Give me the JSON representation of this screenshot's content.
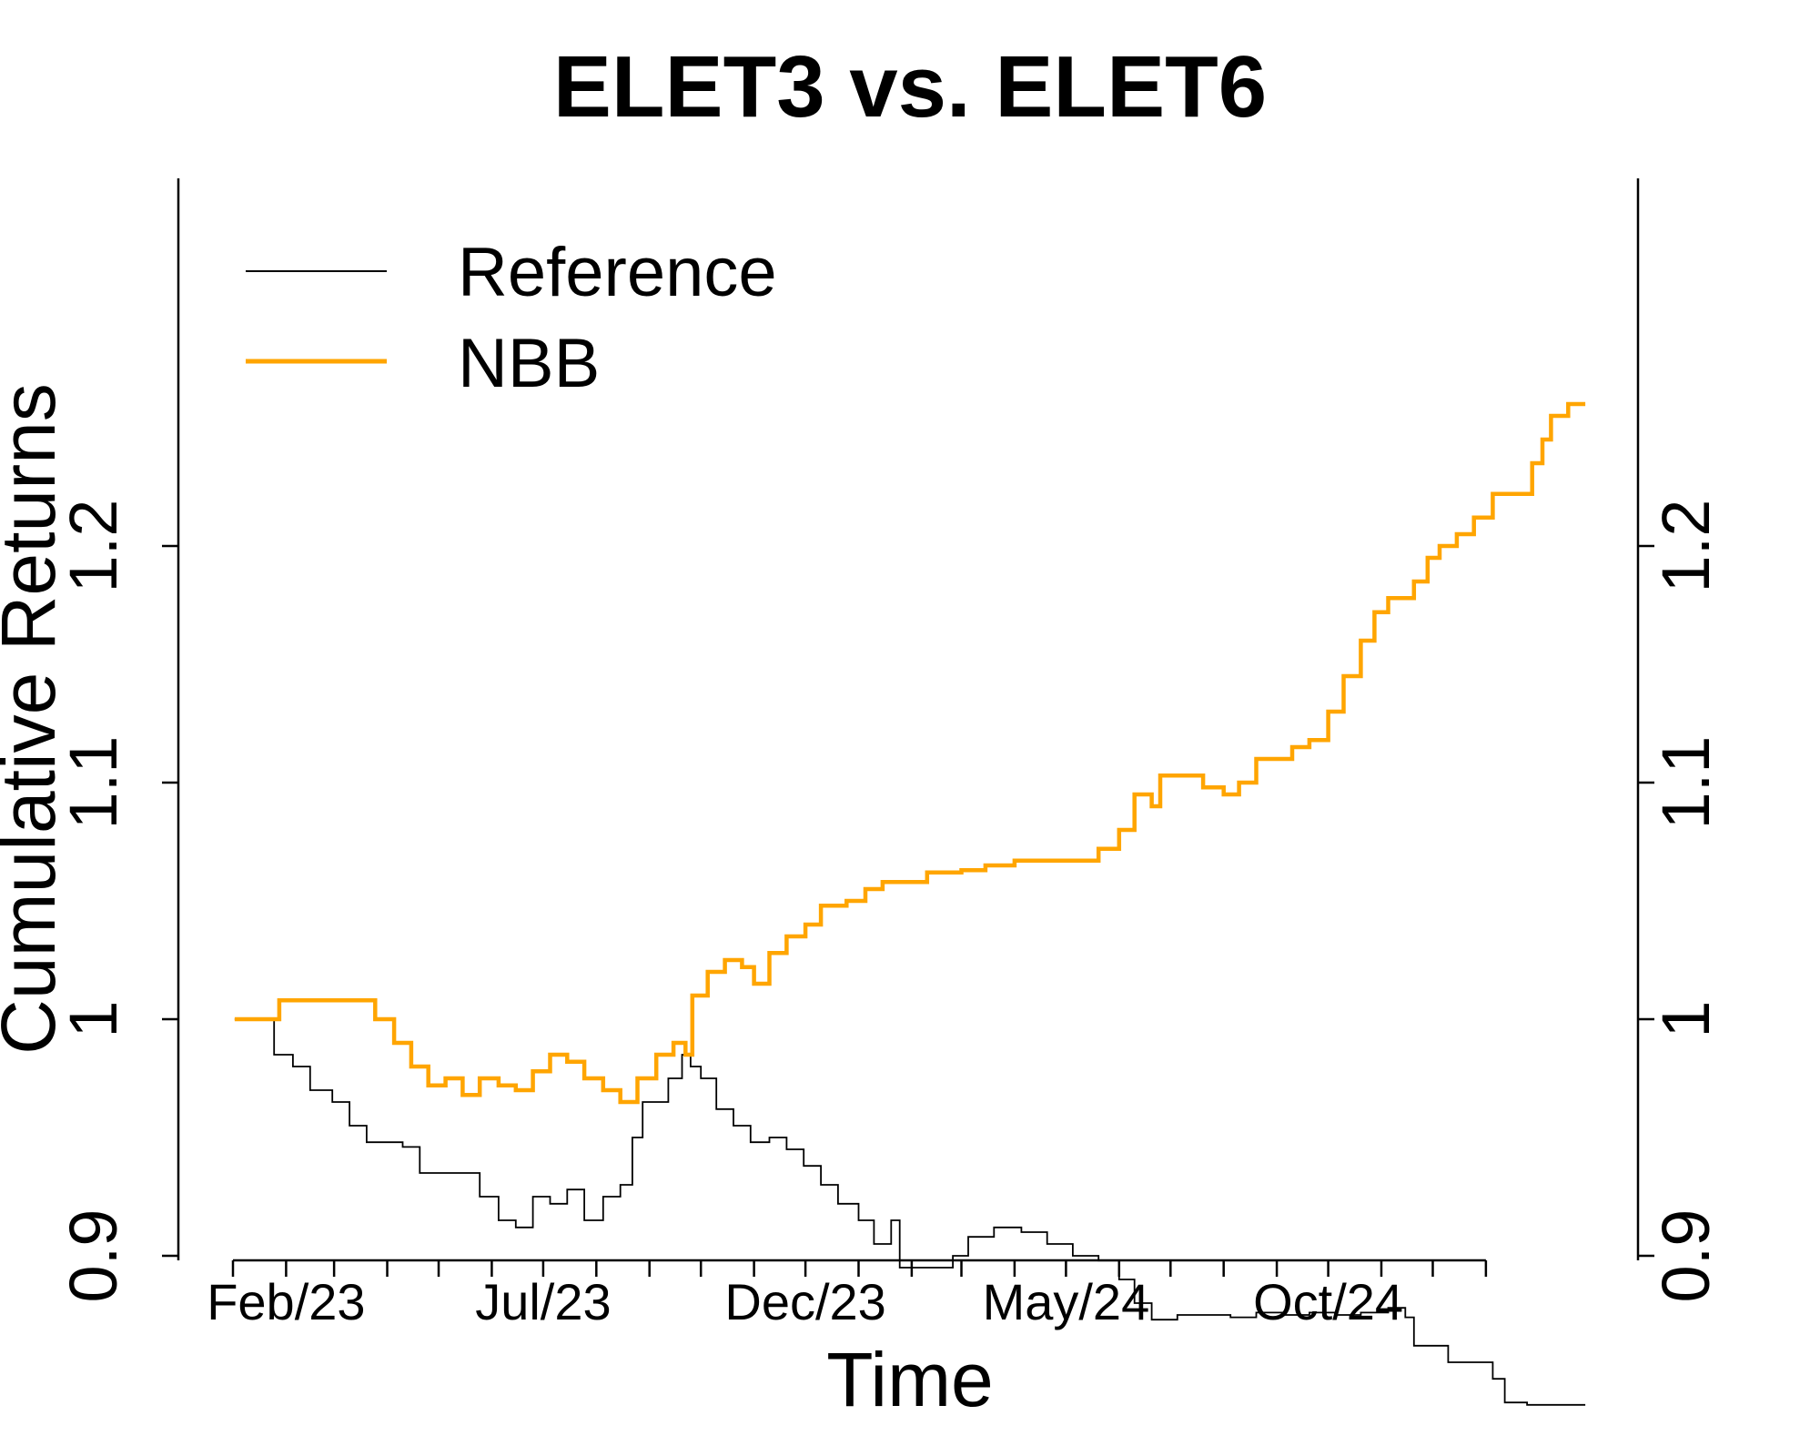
{
  "chart_data": {
    "type": "line",
    "title": "ELET3 vs. ELET6",
    "xlabel": "Time",
    "ylabel": "Cumulative Returns",
    "x_range": [
      "2023-01-01",
      "2025-03-01"
    ],
    "ylim": [
      0.82,
      1.28
    ],
    "x_ticks": [
      "2023-01",
      "2023-02",
      "2023-03",
      "2023-04",
      "2023-05",
      "2023-06",
      "2023-07",
      "2023-08",
      "2023-09",
      "2023-10",
      "2023-11",
      "2023-12",
      "2024-01",
      "2024-02",
      "2024-03",
      "2024-04",
      "2024-05",
      "2024-06",
      "2024-07",
      "2024-08",
      "2024-09",
      "2024-10",
      "2024-11",
      "2024-12",
      "2025-01"
    ],
    "x_tick_labels": [
      {
        "date": "2023-02",
        "label": "Feb/23"
      },
      {
        "date": "2023-07",
        "label": "Jul/23"
      },
      {
        "date": "2023-12",
        "label": "Dec/23"
      },
      {
        "date": "2024-05",
        "label": "May/24"
      },
      {
        "date": "2024-10",
        "label": "Oct/24"
      }
    ],
    "y_ticks": [
      {
        "value": 0.9,
        "label": "0.9"
      },
      {
        "value": 1.0,
        "label": "1"
      },
      {
        "value": 1.1,
        "label": "1.1"
      },
      {
        "value": 1.2,
        "label": "1.2"
      }
    ],
    "grid": false,
    "right_axis": true,
    "legend_position": "top-left",
    "series": [
      {
        "name": "Reference",
        "color": "#000000",
        "points": [
          [
            "2023-01-02",
            1.0
          ],
          [
            "2023-01-20",
            1.0
          ],
          [
            "2023-01-25",
            0.985
          ],
          [
            "2023-02-05",
            0.98
          ],
          [
            "2023-02-15",
            0.97
          ],
          [
            "2023-02-28",
            0.965
          ],
          [
            "2023-03-10",
            0.955
          ],
          [
            "2023-03-20",
            0.948
          ],
          [
            "2023-04-10",
            0.946
          ],
          [
            "2023-04-20",
            0.935
          ],
          [
            "2023-05-15",
            0.935
          ],
          [
            "2023-05-25",
            0.925
          ],
          [
            "2023-06-05",
            0.915
          ],
          [
            "2023-06-15",
            0.912
          ],
          [
            "2023-06-25",
            0.925
          ],
          [
            "2023-07-05",
            0.922
          ],
          [
            "2023-07-15",
            0.928
          ],
          [
            "2023-07-25",
            0.915
          ],
          [
            "2023-08-05",
            0.925
          ],
          [
            "2023-08-15",
            0.93
          ],
          [
            "2023-08-22",
            0.95
          ],
          [
            "2023-08-28",
            0.965
          ],
          [
            "2023-09-05",
            0.965
          ],
          [
            "2023-09-12",
            0.975
          ],
          [
            "2023-09-20",
            0.985
          ],
          [
            "2023-09-25",
            0.98
          ],
          [
            "2023-10-01",
            0.975
          ],
          [
            "2023-10-10",
            0.962
          ],
          [
            "2023-10-20",
            0.955
          ],
          [
            "2023-10-30",
            0.948
          ],
          [
            "2023-11-10",
            0.95
          ],
          [
            "2023-11-20",
            0.945
          ],
          [
            "2023-11-30",
            0.938
          ],
          [
            "2023-12-10",
            0.93
          ],
          [
            "2023-12-20",
            0.922
          ],
          [
            "2024-01-01",
            0.915
          ],
          [
            "2024-01-10",
            0.905
          ],
          [
            "2024-01-20",
            0.915
          ],
          [
            "2024-01-25",
            0.895
          ],
          [
            "2024-02-15",
            0.895
          ],
          [
            "2024-02-25",
            0.9
          ],
          [
            "2024-03-05",
            0.908
          ],
          [
            "2024-03-20",
            0.912
          ],
          [
            "2024-04-05",
            0.91
          ],
          [
            "2024-04-20",
            0.905
          ],
          [
            "2024-05-05",
            0.9
          ],
          [
            "2024-05-20",
            0.898
          ],
          [
            "2024-06-01",
            0.89
          ],
          [
            "2024-06-10",
            0.88
          ],
          [
            "2024-06-20",
            0.873
          ],
          [
            "2024-07-05",
            0.875
          ],
          [
            "2024-07-20",
            0.875
          ],
          [
            "2024-08-05",
            0.874
          ],
          [
            "2024-08-20",
            0.876
          ],
          [
            "2024-09-05",
            0.875
          ],
          [
            "2024-09-20",
            0.876
          ],
          [
            "2024-10-05",
            0.875
          ],
          [
            "2024-10-20",
            0.876
          ],
          [
            "2024-11-05",
            0.878
          ],
          [
            "2024-11-15",
            0.874
          ],
          [
            "2024-11-20",
            0.862
          ],
          [
            "2024-12-01",
            0.862
          ],
          [
            "2024-12-10",
            0.855
          ],
          [
            "2024-12-20",
            0.855
          ],
          [
            "2025-01-05",
            0.848
          ],
          [
            "2025-01-12",
            0.838
          ],
          [
            "2025-01-25",
            0.837
          ],
          [
            "2025-02-28",
            0.837
          ]
        ]
      },
      {
        "name": "NBB",
        "color": "#FFA500",
        "points": [
          [
            "2023-01-02",
            1.0
          ],
          [
            "2023-01-25",
            1.0
          ],
          [
            "2023-01-28",
            1.008
          ],
          [
            "2023-03-15",
            1.008
          ],
          [
            "2023-03-25",
            1.0
          ],
          [
            "2023-04-05",
            0.99
          ],
          [
            "2023-04-15",
            0.98
          ],
          [
            "2023-04-25",
            0.972
          ],
          [
            "2023-05-05",
            0.975
          ],
          [
            "2023-05-15",
            0.968
          ],
          [
            "2023-05-25",
            0.975
          ],
          [
            "2023-06-05",
            0.972
          ],
          [
            "2023-06-15",
            0.97
          ],
          [
            "2023-06-25",
            0.978
          ],
          [
            "2023-07-05",
            0.985
          ],
          [
            "2023-07-15",
            0.982
          ],
          [
            "2023-07-25",
            0.975
          ],
          [
            "2023-08-05",
            0.97
          ],
          [
            "2023-08-15",
            0.965
          ],
          [
            "2023-08-25",
            0.975
          ],
          [
            "2023-09-05",
            0.985
          ],
          [
            "2023-09-15",
            0.99
          ],
          [
            "2023-09-22",
            0.985
          ],
          [
            "2023-09-26",
            1.01
          ],
          [
            "2023-10-05",
            1.02
          ],
          [
            "2023-10-15",
            1.025
          ],
          [
            "2023-10-25",
            1.022
          ],
          [
            "2023-11-01",
            1.015
          ],
          [
            "2023-11-10",
            1.028
          ],
          [
            "2023-11-20",
            1.035
          ],
          [
            "2023-12-01",
            1.04
          ],
          [
            "2023-12-10",
            1.048
          ],
          [
            "2023-12-25",
            1.05
          ],
          [
            "2024-01-05",
            1.055
          ],
          [
            "2024-01-15",
            1.058
          ],
          [
            "2024-02-01",
            1.058
          ],
          [
            "2024-02-10",
            1.062
          ],
          [
            "2024-03-01",
            1.063
          ],
          [
            "2024-03-15",
            1.065
          ],
          [
            "2024-04-01",
            1.067
          ],
          [
            "2024-04-20",
            1.067
          ],
          [
            "2024-05-10",
            1.067
          ],
          [
            "2024-05-20",
            1.072
          ],
          [
            "2024-06-01",
            1.08
          ],
          [
            "2024-06-10",
            1.095
          ],
          [
            "2024-06-20",
            1.09
          ],
          [
            "2024-06-25",
            1.103
          ],
          [
            "2024-07-10",
            1.103
          ],
          [
            "2024-07-20",
            1.098
          ],
          [
            "2024-08-01",
            1.095
          ],
          [
            "2024-08-10",
            1.1
          ],
          [
            "2024-08-20",
            1.11
          ],
          [
            "2024-09-05",
            1.11
          ],
          [
            "2024-09-10",
            1.115
          ],
          [
            "2024-09-20",
            1.118
          ],
          [
            "2024-10-01",
            1.13
          ],
          [
            "2024-10-10",
            1.145
          ],
          [
            "2024-10-20",
            1.16
          ],
          [
            "2024-10-28",
            1.172
          ],
          [
            "2024-11-05",
            1.178
          ],
          [
            "2024-11-15",
            1.178
          ],
          [
            "2024-11-20",
            1.185
          ],
          [
            "2024-11-28",
            1.195
          ],
          [
            "2024-12-05",
            1.2
          ],
          [
            "2024-12-15",
            1.205
          ],
          [
            "2024-12-25",
            1.212
          ],
          [
            "2025-01-05",
            1.222
          ],
          [
            "2025-01-20",
            1.222
          ],
          [
            "2025-01-28",
            1.235
          ],
          [
            "2025-02-03",
            1.245
          ],
          [
            "2025-02-08",
            1.255
          ],
          [
            "2025-02-18",
            1.26
          ],
          [
            "2025-02-28",
            1.26
          ]
        ]
      }
    ]
  }
}
